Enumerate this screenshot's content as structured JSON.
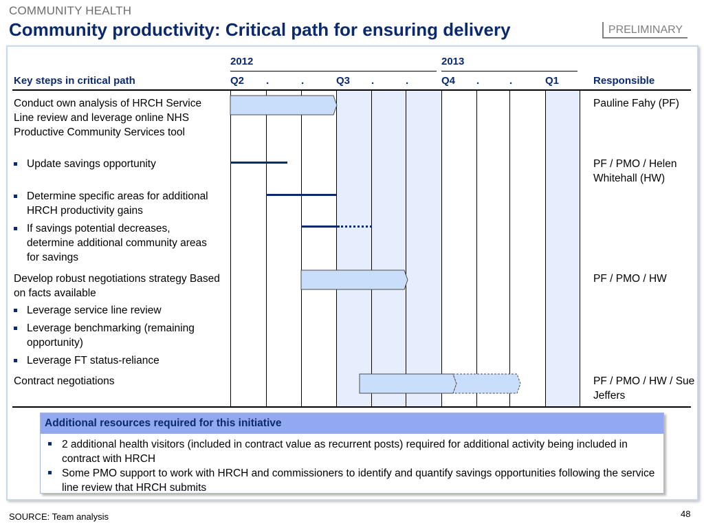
{
  "header": {
    "section": "COMMUNITY HEALTH",
    "title": "Community productivity: Critical path for ensuring delivery",
    "badge": "PRELIMINARY"
  },
  "table": {
    "col_steps": "Key steps in critical path",
    "col_responsible": "Responsible",
    "years": [
      "2012",
      "2013"
    ],
    "periods": [
      "Q2",
      ".",
      ".",
      "Q3",
      ".",
      ".",
      "Q4",
      ".",
      ".",
      "Q1"
    ],
    "rows": [
      {
        "text": "Conduct own analysis of HRCH Service Line review and leverage online NHS Productive Community Services tool",
        "responsible": "Pauline Fahy (PF)"
      },
      {
        "text": "Update savings opportunity",
        "responsible": "PF / PMO / Helen Whitehall (HW)"
      },
      {
        "text": "Determine specific areas for additional HRCH productivity gains"
      },
      {
        "text": "If savings potential decreases, determine additional community areas for savings"
      },
      {
        "text": "Develop robust negotiations strategy Based on facts available",
        "responsible": "PF / PMO / HW"
      },
      {
        "text": "Leverage service line review"
      },
      {
        "text": "Leverage benchmarking (remaining opportunity)"
      },
      {
        "text": "Leverage FT status-reliance"
      },
      {
        "text": "Contract negotiations",
        "responsible": "PF / PMO / HW / Sue Jeffers"
      }
    ]
  },
  "resources": {
    "title": "Additional resources required for this initiative",
    "items": [
      "2 additional health visitors (included in contract value as recurrent posts) required for additional activity being included in contract with HRCH",
      "Some PMO support to work with HRCH and commissioners to identify and quantify savings opportunities following the service line review that HRCH submits"
    ]
  },
  "footer": {
    "source": "SOURCE: Team analysis",
    "page": "48"
  },
  "colors": {
    "title": "#0b2a6e",
    "bar_fill": "#c9defa",
    "line": "#0b2a6e",
    "band": "#e6edfc",
    "resource_header": "#92a8f0"
  }
}
